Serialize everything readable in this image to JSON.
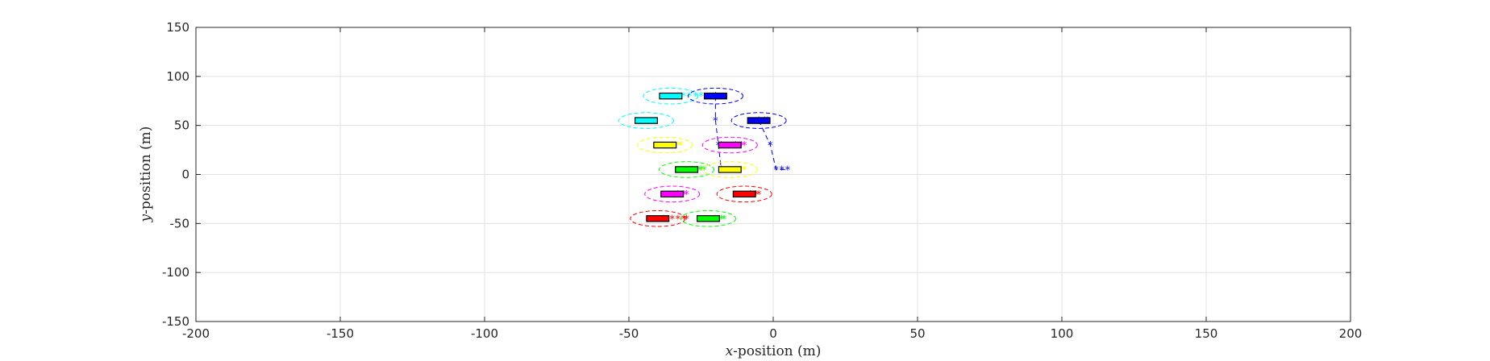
{
  "chart_data": {
    "type": "scatter",
    "title": "",
    "xlabel_var": "x",
    "xlabel_rest": "-position (m)",
    "ylabel_var": "y",
    "ylabel_rest": "-position (m)",
    "xlim": [
      -200,
      200
    ],
    "ylim": [
      -150,
      150
    ],
    "xticks": [
      -200,
      -150,
      -100,
      -50,
      0,
      50,
      100,
      150,
      200
    ],
    "yticks": [
      -150,
      -100,
      -50,
      0,
      50,
      100,
      150
    ],
    "xtick_labels": [
      "-200",
      "-150",
      "-100",
      "-50",
      "0",
      "50",
      "100",
      "150",
      "200"
    ],
    "ytick_labels": [
      "-150",
      "-100",
      "-50",
      "0",
      "50",
      "100",
      "150"
    ],
    "grid": true,
    "vehicle_length_m": 5,
    "vehicle_width_m": 7,
    "ellipse_rx_m": 5,
    "ellipse_ry_m": 7,
    "vehicles": [
      {
        "color": "#00ffff",
        "x": -35.5,
        "y": 80,
        "trail": [
          [
            -33,
            80
          ],
          [
            -31,
            80
          ],
          [
            -29,
            80
          ],
          [
            -27,
            80
          ],
          [
            -25,
            80
          ]
        ]
      },
      {
        "color": "#0000ff",
        "x": -20,
        "y": 80,
        "trail": []
      },
      {
        "color": "#00ffff",
        "x": -44,
        "y": 55,
        "trail": []
      },
      {
        "color": "#0000ff",
        "x": -5,
        "y": 55,
        "trail": [
          [
            -3,
            55
          ],
          [
            -2,
            55
          ]
        ]
      },
      {
        "color": "#ffff00",
        "x": -37.5,
        "y": 30,
        "trail": [
          [
            -35,
            30
          ],
          [
            -33,
            30
          ],
          [
            -32,
            30
          ]
        ]
      },
      {
        "color": "#ff00ff",
        "x": -15,
        "y": 30,
        "trail": [
          [
            -13,
            30
          ],
          [
            -11,
            30
          ],
          [
            -10,
            30
          ],
          [
            -18,
            30
          ]
        ]
      },
      {
        "color": "#00ff00",
        "x": -30,
        "y": 5,
        "trail": [
          [
            -28,
            5
          ],
          [
            -26,
            5
          ],
          [
            -25,
            5
          ],
          [
            -24,
            5
          ]
        ]
      },
      {
        "color": "#ffff00",
        "x": -15,
        "y": 5,
        "trail": [
          [
            -13,
            5
          ],
          [
            -11,
            5
          ],
          [
            -10,
            5
          ]
        ]
      },
      {
        "color": "#ff00ff",
        "x": -35,
        "y": -20,
        "trail": [
          [
            -33,
            -20
          ],
          [
            -31,
            -20
          ],
          [
            -30,
            -20
          ]
        ]
      },
      {
        "color": "#ff0000",
        "x": -10,
        "y": -20,
        "trail": [
          [
            -8,
            -20
          ],
          [
            -6,
            -20
          ],
          [
            -5,
            -20
          ]
        ]
      },
      {
        "color": "#ff0000",
        "x": -40,
        "y": -45,
        "trail": [
          [
            -38,
            -45
          ],
          [
            -35,
            -45
          ],
          [
            -33,
            -45
          ],
          [
            -31,
            -45
          ],
          [
            -30,
            -45
          ]
        ]
      },
      {
        "color": "#00ff00",
        "x": -22.5,
        "y": -45,
        "trail": [
          [
            -20,
            -45
          ],
          [
            -18,
            -45
          ],
          [
            -17,
            -45
          ]
        ]
      }
    ],
    "trajectories": [
      {
        "color": "#0000ff",
        "points": [
          [
            -20,
            80
          ],
          [
            -20,
            55
          ],
          [
            -19,
            30
          ],
          [
            -18,
            5
          ]
        ]
      },
      {
        "color": "#0000ff",
        "points": [
          [
            -5,
            55
          ],
          [
            -1,
            30
          ],
          [
            1,
            5
          ],
          [
            3,
            5
          ],
          [
            5,
            5
          ]
        ]
      }
    ]
  }
}
